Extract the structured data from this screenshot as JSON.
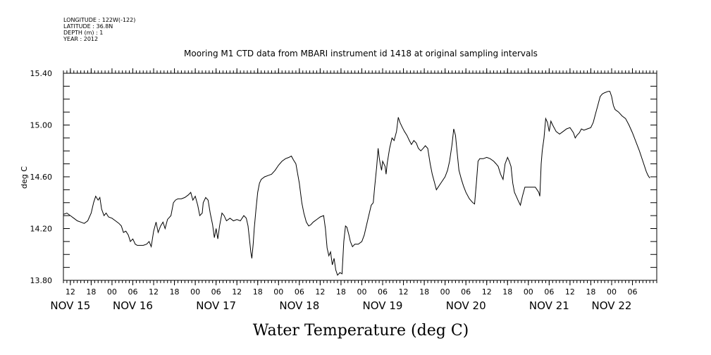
{
  "meta": {
    "longitude": "LONGITUDE : 122W(-122)",
    "latitude": "LATITUDE : 36.8N",
    "depth": "DEPTH (m) : 1",
    "year": "YEAR : 2012"
  },
  "chart_data": {
    "type": "line",
    "title": "Mooring M1 CTD data from MBARI instrument id 1418 at original sampling intervals",
    "xlabel": "Water Temperature (deg C)",
    "ylabel": "deg C",
    "ylim": [
      13.8,
      15.4
    ],
    "yticks": [
      "13.80",
      "14.20",
      "14.60",
      "15.00",
      "15.40"
    ],
    "xlim_hours": [
      10,
      181
    ],
    "hour_ticks": [
      {
        "h": 12,
        "label": "12"
      },
      {
        "h": 18,
        "label": "18"
      },
      {
        "h": 24,
        "label": "00"
      },
      {
        "h": 30,
        "label": "06"
      },
      {
        "h": 36,
        "label": "12"
      },
      {
        "h": 42,
        "label": "18"
      },
      {
        "h": 48,
        "label": "00"
      },
      {
        "h": 54,
        "label": "06"
      },
      {
        "h": 60,
        "label": "12"
      },
      {
        "h": 66,
        "label": "18"
      },
      {
        "h": 72,
        "label": "00"
      },
      {
        "h": 78,
        "label": "06"
      },
      {
        "h": 84,
        "label": "12"
      },
      {
        "h": 90,
        "label": "18"
      },
      {
        "h": 96,
        "label": "00"
      },
      {
        "h": 102,
        "label": "06"
      },
      {
        "h": 108,
        "label": "12"
      },
      {
        "h": 114,
        "label": "18"
      },
      {
        "h": 120,
        "label": "00"
      },
      {
        "h": 126,
        "label": "06"
      },
      {
        "h": 132,
        "label": "12"
      },
      {
        "h": 138,
        "label": "18"
      },
      {
        "h": 144,
        "label": "00"
      },
      {
        "h": 150,
        "label": "06"
      },
      {
        "h": 156,
        "label": "12"
      },
      {
        "h": 162,
        "label": "18"
      },
      {
        "h": 168,
        "label": "00"
      },
      {
        "h": 174,
        "label": "06"
      }
    ],
    "day_labels": [
      {
        "h": 12,
        "label": "NOV 15"
      },
      {
        "h": 30,
        "label": "NOV 16"
      },
      {
        "h": 54,
        "label": "NOV 17"
      },
      {
        "h": 78,
        "label": "NOV 18"
      },
      {
        "h": 102,
        "label": "NOV 19"
      },
      {
        "h": 126,
        "label": "NOV 20"
      },
      {
        "h": 150,
        "label": "NOV 21"
      },
      {
        "h": 168,
        "label": "NOV 22"
      }
    ],
    "series": [
      {
        "values": [
          [
            10.0,
            14.31
          ],
          [
            11.0,
            14.32
          ],
          [
            12.0,
            14.3
          ],
          [
            13.0,
            14.28
          ],
          [
            14.0,
            14.26
          ],
          [
            15.0,
            14.25
          ],
          [
            16.0,
            14.24
          ],
          [
            17.0,
            14.26
          ],
          [
            18.0,
            14.32
          ],
          [
            18.7,
            14.4
          ],
          [
            19.3,
            14.45
          ],
          [
            20.0,
            14.42
          ],
          [
            20.5,
            14.44
          ],
          [
            21.0,
            14.35
          ],
          [
            21.7,
            14.3
          ],
          [
            22.3,
            14.32
          ],
          [
            23.0,
            14.29
          ],
          [
            24.0,
            14.28
          ],
          [
            25.0,
            14.26
          ],
          [
            26.0,
            14.24
          ],
          [
            26.7,
            14.22
          ],
          [
            27.3,
            14.17
          ],
          [
            28.0,
            14.18
          ],
          [
            28.7,
            14.15
          ],
          [
            29.3,
            14.1
          ],
          [
            30.0,
            14.12
          ],
          [
            30.7,
            14.08
          ],
          [
            31.3,
            14.07
          ],
          [
            32.0,
            14.07
          ],
          [
            33.0,
            14.07
          ],
          [
            34.0,
            14.08
          ],
          [
            34.7,
            14.1
          ],
          [
            35.3,
            14.06
          ],
          [
            36.0,
            14.18
          ],
          [
            36.7,
            14.25
          ],
          [
            37.3,
            14.17
          ],
          [
            38.0,
            14.22
          ],
          [
            38.7,
            14.25
          ],
          [
            39.3,
            14.2
          ],
          [
            40.0,
            14.27
          ],
          [
            41.0,
            14.3
          ],
          [
            41.7,
            14.4
          ],
          [
            42.3,
            14.42
          ],
          [
            43.0,
            14.43
          ],
          [
            44.0,
            14.43
          ],
          [
            45.0,
            14.44
          ],
          [
            46.0,
            14.46
          ],
          [
            46.7,
            14.48
          ],
          [
            47.3,
            14.42
          ],
          [
            48.0,
            14.45
          ],
          [
            48.7,
            14.38
          ],
          [
            49.3,
            14.3
          ],
          [
            50.0,
            14.32
          ],
          [
            50.3,
            14.4
          ],
          [
            51.0,
            14.44
          ],
          [
            51.7,
            14.42
          ],
          [
            52.3,
            14.32
          ],
          [
            53.0,
            14.23
          ],
          [
            53.5,
            14.13
          ],
          [
            54.0,
            14.2
          ],
          [
            54.5,
            14.12
          ],
          [
            55.0,
            14.22
          ],
          [
            55.7,
            14.32
          ],
          [
            56.3,
            14.3
          ],
          [
            57.0,
            14.26
          ],
          [
            58.0,
            14.28
          ],
          [
            59.0,
            14.26
          ],
          [
            60.0,
            14.27
          ],
          [
            61.0,
            14.26
          ],
          [
            62.0,
            14.3
          ],
          [
            62.7,
            14.28
          ],
          [
            63.2,
            14.22
          ],
          [
            63.7,
            14.1
          ],
          [
            64.0,
            14.02
          ],
          [
            64.3,
            13.97
          ],
          [
            64.7,
            14.08
          ],
          [
            65.0,
            14.2
          ],
          [
            65.5,
            14.35
          ],
          [
            66.0,
            14.48
          ],
          [
            66.5,
            14.55
          ],
          [
            67.0,
            14.58
          ],
          [
            68.0,
            14.6
          ],
          [
            69.0,
            14.61
          ],
          [
            70.0,
            14.62
          ],
          [
            71.0,
            14.65
          ],
          [
            72.0,
            14.69
          ],
          [
            73.0,
            14.72
          ],
          [
            74.0,
            14.74
          ],
          [
            75.0,
            14.75
          ],
          [
            75.7,
            14.76
          ],
          [
            76.3,
            14.73
          ],
          [
            77.0,
            14.7
          ],
          [
            78.0,
            14.55
          ],
          [
            78.7,
            14.4
          ],
          [
            79.3,
            14.32
          ],
          [
            80.0,
            14.25
          ],
          [
            80.7,
            14.22
          ],
          [
            81.3,
            14.23
          ],
          [
            82.0,
            14.25
          ],
          [
            83.0,
            14.27
          ],
          [
            84.0,
            14.29
          ],
          [
            85.0,
            14.3
          ],
          [
            85.5,
            14.2
          ],
          [
            86.0,
            14.05
          ],
          [
            86.5,
            13.99
          ],
          [
            87.0,
            14.02
          ],
          [
            87.5,
            13.92
          ],
          [
            88.0,
            13.97
          ],
          [
            88.5,
            13.88
          ],
          [
            89.0,
            13.84
          ],
          [
            89.7,
            13.86
          ],
          [
            90.3,
            13.85
          ],
          [
            90.8,
            14.1
          ],
          [
            91.3,
            14.22
          ],
          [
            91.7,
            14.21
          ],
          [
            92.3,
            14.15
          ],
          [
            92.7,
            14.1
          ],
          [
            93.3,
            14.06
          ],
          [
            94.0,
            14.08
          ],
          [
            95.0,
            14.08
          ],
          [
            96.0,
            14.1
          ],
          [
            96.7,
            14.15
          ],
          [
            97.3,
            14.22
          ],
          [
            98.0,
            14.3
          ],
          [
            98.7,
            14.38
          ],
          [
            99.3,
            14.4
          ],
          [
            99.7,
            14.52
          ],
          [
            100.3,
            14.68
          ],
          [
            100.7,
            14.82
          ],
          [
            101.0,
            14.75
          ],
          [
            101.3,
            14.7
          ],
          [
            101.7,
            14.65
          ],
          [
            102.0,
            14.72
          ],
          [
            102.7,
            14.68
          ],
          [
            103.0,
            14.62
          ],
          [
            103.3,
            14.7
          ],
          [
            104.0,
            14.82
          ],
          [
            104.7,
            14.9
          ],
          [
            105.3,
            14.88
          ],
          [
            106.0,
            14.95
          ],
          [
            106.5,
            15.06
          ],
          [
            107.0,
            15.02
          ],
          [
            107.7,
            14.98
          ],
          [
            108.3,
            14.95
          ],
          [
            109.0,
            14.92
          ],
          [
            109.7,
            14.88
          ],
          [
            110.3,
            14.85
          ],
          [
            111.0,
            14.88
          ],
          [
            111.7,
            14.86
          ],
          [
            112.3,
            14.82
          ],
          [
            113.0,
            14.8
          ],
          [
            113.7,
            14.82
          ],
          [
            114.3,
            14.84
          ],
          [
            115.0,
            14.82
          ],
          [
            115.7,
            14.7
          ],
          [
            116.3,
            14.62
          ],
          [
            117.0,
            14.55
          ],
          [
            117.5,
            14.5
          ],
          [
            118.0,
            14.52
          ],
          [
            119.0,
            14.56
          ],
          [
            120.0,
            14.6
          ],
          [
            120.7,
            14.65
          ],
          [
            121.3,
            14.72
          ],
          [
            122.0,
            14.85
          ],
          [
            122.5,
            14.97
          ],
          [
            123.0,
            14.92
          ],
          [
            123.5,
            14.78
          ],
          [
            124.0,
            14.65
          ],
          [
            124.7,
            14.58
          ],
          [
            125.3,
            14.53
          ],
          [
            126.0,
            14.48
          ],
          [
            127.0,
            14.43
          ],
          [
            128.0,
            14.4
          ],
          [
            128.5,
            14.39
          ],
          [
            129.0,
            14.55
          ],
          [
            129.5,
            14.72
          ],
          [
            130.0,
            14.74
          ],
          [
            131.0,
            14.74
          ],
          [
            132.0,
            14.75
          ],
          [
            133.0,
            14.74
          ],
          [
            134.0,
            14.72
          ],
          [
            134.7,
            14.7
          ],
          [
            135.3,
            14.68
          ],
          [
            136.0,
            14.62
          ],
          [
            136.7,
            14.58
          ],
          [
            137.3,
            14.7
          ],
          [
            138.0,
            14.75
          ],
          [
            138.5,
            14.72
          ],
          [
            139.0,
            14.68
          ],
          [
            139.5,
            14.55
          ],
          [
            140.0,
            14.48
          ],
          [
            140.5,
            14.45
          ],
          [
            141.0,
            14.42
          ],
          [
            141.7,
            14.38
          ],
          [
            142.3,
            14.45
          ],
          [
            143.0,
            14.52
          ],
          [
            144.0,
            14.52
          ],
          [
            145.0,
            14.52
          ],
          [
            146.0,
            14.52
          ],
          [
            147.0,
            14.48
          ],
          [
            147.3,
            14.45
          ],
          [
            147.7,
            14.7
          ],
          [
            148.0,
            14.8
          ],
          [
            148.5,
            14.9
          ],
          [
            149.0,
            15.05
          ],
          [
            149.5,
            15.02
          ],
          [
            150.0,
            14.95
          ],
          [
            150.5,
            15.03
          ],
          [
            151.0,
            15.0
          ],
          [
            152.0,
            14.95
          ],
          [
            153.0,
            14.93
          ],
          [
            154.0,
            14.95
          ],
          [
            155.0,
            14.97
          ],
          [
            156.0,
            14.98
          ],
          [
            157.0,
            14.94
          ],
          [
            157.5,
            14.9
          ],
          [
            158.0,
            14.92
          ],
          [
            158.7,
            14.94
          ],
          [
            159.3,
            14.97
          ],
          [
            160.0,
            14.96
          ],
          [
            161.0,
            14.97
          ],
          [
            162.0,
            14.98
          ],
          [
            162.7,
            15.02
          ],
          [
            163.3,
            15.08
          ],
          [
            164.0,
            15.15
          ],
          [
            164.7,
            15.22
          ],
          [
            165.3,
            15.24
          ],
          [
            166.0,
            15.25
          ],
          [
            167.0,
            15.26
          ],
          [
            167.5,
            15.26
          ],
          [
            168.0,
            15.22
          ],
          [
            168.5,
            15.15
          ],
          [
            169.0,
            15.12
          ],
          [
            170.0,
            15.1
          ],
          [
            171.0,
            15.07
          ],
          [
            172.0,
            15.05
          ],
          [
            173.0,
            15.0
          ],
          [
            174.0,
            14.94
          ],
          [
            175.0,
            14.87
          ],
          [
            176.0,
            14.8
          ],
          [
            177.0,
            14.72
          ],
          [
            178.0,
            14.64
          ],
          [
            178.5,
            14.61
          ],
          [
            179.0,
            14.59
          ]
        ]
      }
    ]
  }
}
